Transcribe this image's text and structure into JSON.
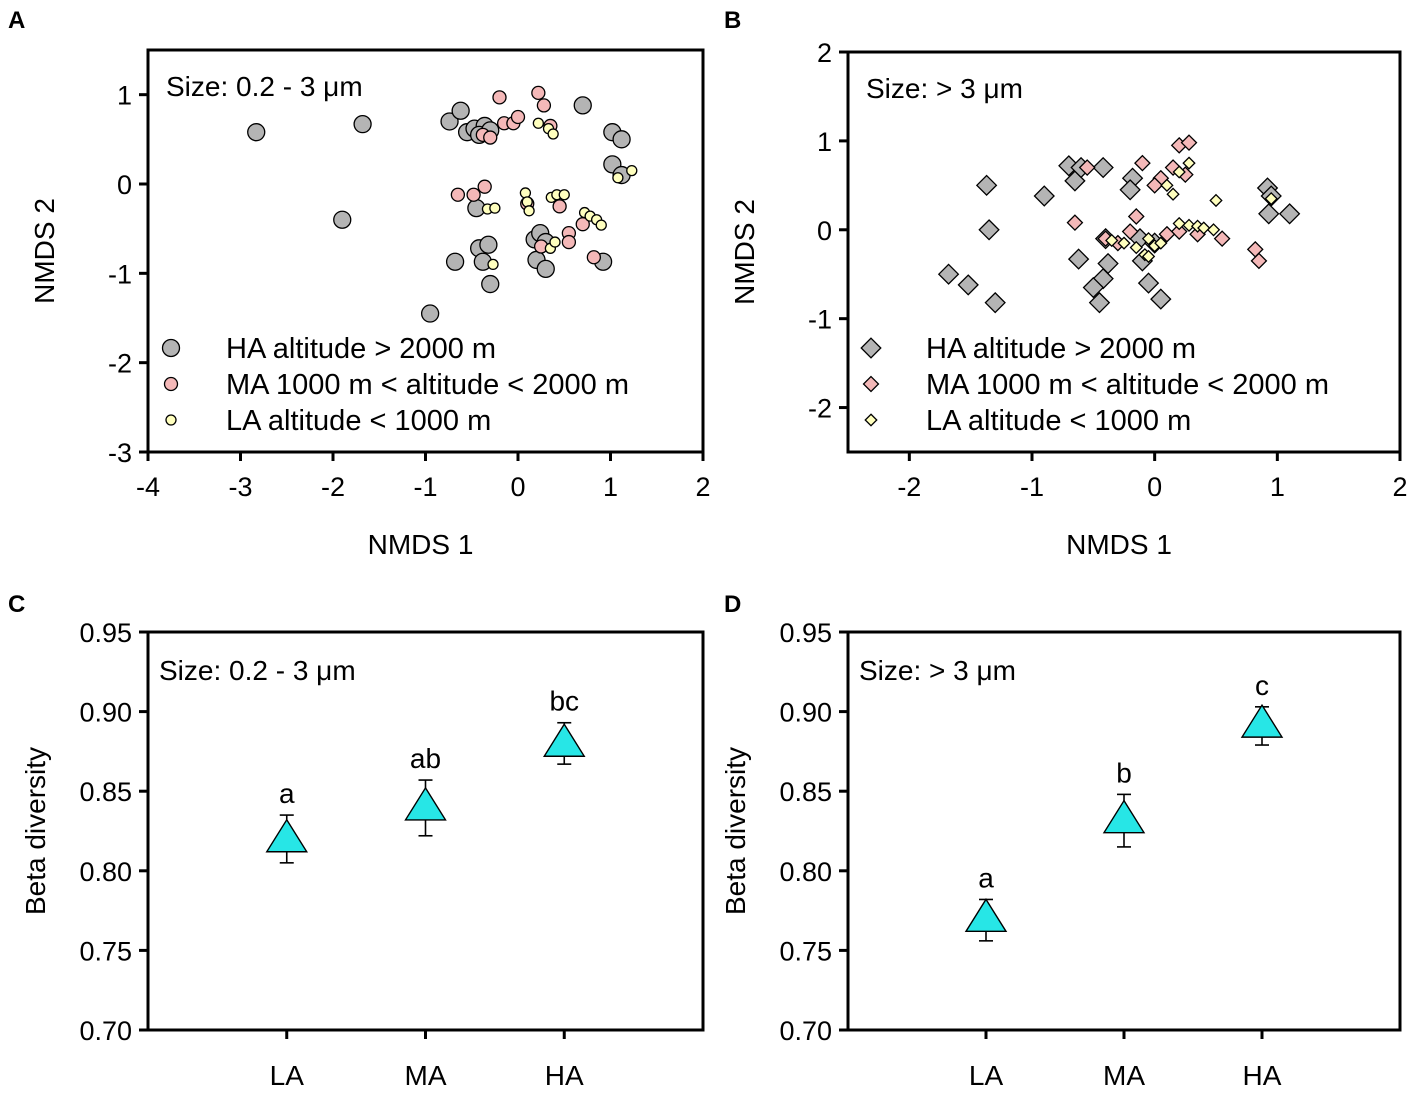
{
  "colors": {
    "HA": "#b4b4b4",
    "MA": "#f4b8b8",
    "LA": "#ffffbe",
    "triangle": "#27e6e6",
    "outline": "#000000"
  },
  "chart_data": [
    {
      "panel": "A",
      "type": "scatter",
      "size_label": "Size: 0.2 - 3 μm",
      "xlabel": "NMDS 1",
      "ylabel": "NMDS 2",
      "xlim": [
        -4,
        2
      ],
      "ylim": [
        -3,
        1.5
      ],
      "xticks": [
        -4,
        -3,
        -2,
        -1,
        0,
        1,
        2
      ],
      "yticks": [
        -3,
        -2,
        -1,
        0,
        1
      ],
      "marker": "circle",
      "legend_position": "bottom-left",
      "series": [
        {
          "key": "HA",
          "name": "HA altitude > 2000 m",
          "size": "large",
          "points": [
            [
              -2.83,
              0.58
            ],
            [
              -1.68,
              0.67
            ],
            [
              -1.9,
              -0.4
            ],
            [
              -0.95,
              -1.45
            ],
            [
              -0.74,
              0.7
            ],
            [
              -0.62,
              0.82
            ],
            [
              -0.55,
              0.58
            ],
            [
              -0.47,
              0.62
            ],
            [
              -0.36,
              0.65
            ],
            [
              -0.42,
              0.55
            ],
            [
              -0.3,
              0.6
            ],
            [
              0.7,
              0.88
            ],
            [
              1.02,
              0.58
            ],
            [
              1.12,
              0.5
            ],
            [
              1.02,
              0.22
            ],
            [
              1.12,
              0.1
            ],
            [
              -0.45,
              -0.27
            ],
            [
              -0.42,
              -0.72
            ],
            [
              -0.32,
              -0.68
            ],
            [
              -0.68,
              -0.87
            ],
            [
              -0.38,
              -0.87
            ],
            [
              -0.3,
              -1.12
            ],
            [
              0.18,
              -0.62
            ],
            [
              0.24,
              -0.55
            ],
            [
              0.3,
              -0.65
            ],
            [
              0.2,
              -0.85
            ],
            [
              0.3,
              -0.95
            ],
            [
              0.92,
              -0.87
            ]
          ]
        },
        {
          "key": "MA",
          "name": "MA 1000 m < altitude < 2000 m",
          "size": "medium",
          "points": [
            [
              -0.2,
              0.97
            ],
            [
              0.22,
              1.02
            ],
            [
              0.28,
              0.88
            ],
            [
              -0.38,
              0.55
            ],
            [
              -0.3,
              0.52
            ],
            [
              -0.15,
              0.68
            ],
            [
              -0.05,
              0.68
            ],
            [
              0.0,
              0.75
            ],
            [
              0.35,
              0.65
            ],
            [
              -0.65,
              -0.12
            ],
            [
              -0.48,
              -0.12
            ],
            [
              -0.36,
              -0.03
            ],
            [
              0.45,
              -0.25
            ],
            [
              0.55,
              -0.55
            ],
            [
              0.55,
              -0.65
            ],
            [
              0.82,
              -0.82
            ],
            [
              0.7,
              -0.45
            ],
            [
              0.25,
              -0.7
            ],
            [
              0.1,
              -0.22
            ]
          ]
        },
        {
          "key": "LA",
          "name": "LA altitude < 1000 m",
          "size": "small",
          "points": [
            [
              0.22,
              0.68
            ],
            [
              0.33,
              0.62
            ],
            [
              0.38,
              0.56
            ],
            [
              1.08,
              0.07
            ],
            [
              1.23,
              0.15
            ],
            [
              -0.33,
              -0.28
            ],
            [
              -0.25,
              -0.27
            ],
            [
              0.08,
              -0.1
            ],
            [
              0.1,
              -0.2
            ],
            [
              0.12,
              -0.3
            ],
            [
              0.36,
              -0.15
            ],
            [
              0.42,
              -0.12
            ],
            [
              0.5,
              -0.12
            ],
            [
              0.72,
              -0.32
            ],
            [
              0.78,
              -0.36
            ],
            [
              0.85,
              -0.4
            ],
            [
              0.9,
              -0.46
            ],
            [
              -0.27,
              -0.9
            ],
            [
              0.35,
              -0.72
            ],
            [
              0.4,
              -0.65
            ]
          ]
        }
      ]
    },
    {
      "panel": "B",
      "type": "scatter",
      "size_label": "Size: > 3 μm",
      "xlabel": "NMDS 1",
      "ylabel": "NMDS 2",
      "xlim": [
        -2.5,
        2
      ],
      "ylim": [
        -2.5,
        2
      ],
      "xticks": [
        -2,
        -1,
        0,
        1,
        2
      ],
      "yticks": [
        -2,
        -1,
        0,
        1,
        2
      ],
      "marker": "diamond",
      "legend_position": "bottom-left",
      "series": [
        {
          "key": "HA",
          "name": "HA altitude > 2000 m",
          "size": "large",
          "points": [
            [
              -1.37,
              0.5
            ],
            [
              -1.35,
              0.0
            ],
            [
              -1.68,
              -0.5
            ],
            [
              -1.52,
              -0.62
            ],
            [
              -1.3,
              -0.82
            ],
            [
              -0.9,
              0.38
            ],
            [
              -0.7,
              0.72
            ],
            [
              -0.65,
              0.55
            ],
            [
              -0.6,
              0.7
            ],
            [
              -0.42,
              0.7
            ],
            [
              -0.18,
              0.58
            ],
            [
              -0.2,
              0.45
            ],
            [
              0.92,
              0.47
            ],
            [
              0.95,
              0.38
            ],
            [
              0.93,
              0.18
            ],
            [
              1.1,
              0.18
            ],
            [
              -0.62,
              -0.33
            ],
            [
              -0.4,
              -0.1
            ],
            [
              -0.38,
              -0.38
            ],
            [
              -0.42,
              -0.55
            ],
            [
              -0.5,
              -0.65
            ],
            [
              -0.45,
              -0.82
            ],
            [
              -0.12,
              -0.1
            ],
            [
              -0.1,
              -0.35
            ],
            [
              0.0,
              -0.15
            ],
            [
              -0.05,
              -0.6
            ],
            [
              0.05,
              -0.78
            ]
          ]
        },
        {
          "key": "MA",
          "name": "MA 1000 m < altitude < 2000 m",
          "size": "medium",
          "points": [
            [
              -0.55,
              0.7
            ],
            [
              -0.1,
              0.75
            ],
            [
              0.05,
              0.58
            ],
            [
              0.0,
              0.5
            ],
            [
              0.15,
              0.7
            ],
            [
              0.25,
              0.62
            ],
            [
              0.2,
              0.95
            ],
            [
              0.28,
              0.98
            ],
            [
              -0.65,
              0.08
            ],
            [
              -0.4,
              -0.1
            ],
            [
              -0.3,
              -0.15
            ],
            [
              -0.2,
              -0.02
            ],
            [
              -0.15,
              0.15
            ],
            [
              0.2,
              -0.02
            ],
            [
              0.35,
              -0.05
            ],
            [
              0.55,
              -0.1
            ],
            [
              0.82,
              -0.22
            ],
            [
              0.85,
              -0.35
            ],
            [
              0.1,
              -0.05
            ]
          ]
        },
        {
          "key": "LA",
          "name": "LA altitude < 1000 m",
          "size": "small",
          "points": [
            [
              0.1,
              0.5
            ],
            [
              0.15,
              0.4
            ],
            [
              0.2,
              0.65
            ],
            [
              0.28,
              0.75
            ],
            [
              0.5,
              0.33
            ],
            [
              0.95,
              0.35
            ],
            [
              -0.35,
              -0.12
            ],
            [
              -0.25,
              -0.15
            ],
            [
              -0.15,
              -0.2
            ],
            [
              -0.08,
              -0.28
            ],
            [
              -0.05,
              -0.1
            ],
            [
              0.0,
              -0.18
            ],
            [
              0.05,
              -0.15
            ],
            [
              0.2,
              0.07
            ],
            [
              0.28,
              0.05
            ],
            [
              0.35,
              0.04
            ],
            [
              0.4,
              0.02
            ],
            [
              0.48,
              0.0
            ],
            [
              -0.05,
              -0.3
            ]
          ]
        }
      ]
    },
    {
      "panel": "C",
      "type": "scatter",
      "size_label": "Size: 0.2 - 3 μm",
      "xlabel": "",
      "ylabel": "Beta diversity",
      "categories": [
        "LA",
        "MA",
        "HA"
      ],
      "ylim": [
        0.7,
        0.95
      ],
      "yticks": [
        "0.70",
        "0.75",
        "0.80",
        "0.85",
        "0.90",
        "0.95"
      ],
      "marker": "triangle",
      "values": [
        0.82,
        0.84,
        0.88
      ],
      "err_low": [
        0.805,
        0.822,
        0.867
      ],
      "err_high": [
        0.835,
        0.857,
        0.893
      ],
      "letters": [
        "a",
        "ab",
        "bc"
      ]
    },
    {
      "panel": "D",
      "type": "scatter",
      "size_label": "Size: > 3 μm",
      "xlabel": "",
      "ylabel": "Beta diversity",
      "categories": [
        "LA",
        "MA",
        "HA"
      ],
      "ylim": [
        0.7,
        0.95
      ],
      "yticks": [
        "0.70",
        "0.75",
        "0.80",
        "0.85",
        "0.90",
        "0.95"
      ],
      "marker": "triangle",
      "values": [
        0.77,
        0.832,
        0.892
      ],
      "err_low": [
        0.756,
        0.815,
        0.879
      ],
      "err_high": [
        0.782,
        0.848,
        0.903
      ],
      "letters": [
        "a",
        "b",
        "c"
      ]
    }
  ]
}
